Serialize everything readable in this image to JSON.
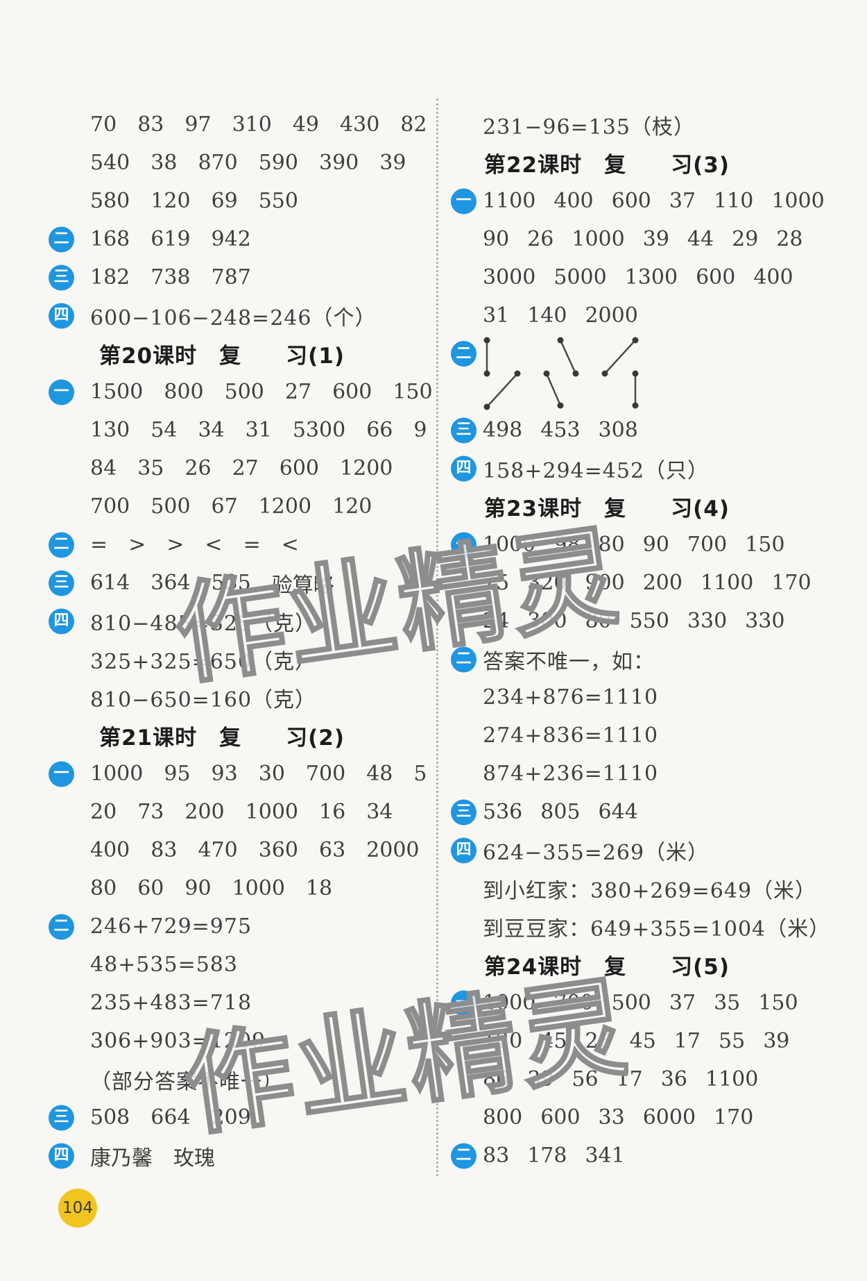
{
  "page": {
    "background": "#f8f7f3",
    "accent_blue": "#1f96e0",
    "page_number": "104",
    "page_number_bg": "#f2c41f",
    "watermark_text": "作业精灵",
    "watermark_outline": "#8d8d8d"
  },
  "columns": {
    "left": [
      {
        "type": "row",
        "marker": null,
        "items": [
          "70",
          "83",
          "97",
          "310",
          "49",
          "430",
          "82"
        ]
      },
      {
        "type": "row",
        "marker": null,
        "items": [
          "540",
          "38",
          "870",
          "590",
          "390",
          "39"
        ]
      },
      {
        "type": "row",
        "marker": null,
        "items": [
          "580",
          "120",
          "69",
          "550"
        ]
      },
      {
        "type": "row",
        "marker": "二",
        "items": [
          "168",
          "619",
          "942"
        ]
      },
      {
        "type": "row",
        "marker": "三",
        "items": [
          "182",
          "738",
          "787"
        ]
      },
      {
        "type": "expr",
        "marker": "四",
        "text": "600−106−248=246（个）"
      },
      {
        "type": "heading",
        "text": "第20课时　复　　习(1)"
      },
      {
        "type": "row",
        "marker": "一",
        "items": [
          "1500",
          "800",
          "500",
          "27",
          "600",
          "150"
        ]
      },
      {
        "type": "row",
        "marker": null,
        "items": [
          "130",
          "54",
          "34",
          "31",
          "5300",
          "66",
          "9"
        ]
      },
      {
        "type": "row",
        "marker": null,
        "items": [
          "84",
          "35",
          "26",
          "27",
          "600",
          "1200"
        ]
      },
      {
        "type": "row",
        "marker": null,
        "items": [
          "700",
          "500",
          "67",
          "1200",
          "120"
        ]
      },
      {
        "type": "row",
        "marker": "二",
        "items": [
          "=",
          ">",
          ">",
          "<",
          "=",
          "<"
        ]
      },
      {
        "type": "row",
        "marker": "三",
        "items": [
          "614",
          "364",
          "535",
          "验算略"
        ]
      },
      {
        "type": "expr",
        "marker": "四",
        "text": "810−485=325（克）"
      },
      {
        "type": "expr",
        "marker": null,
        "text": "325+325=650（克）"
      },
      {
        "type": "expr",
        "marker": null,
        "text": "810−650=160（克）"
      },
      {
        "type": "heading",
        "text": "第21课时　复　　习(2)"
      },
      {
        "type": "row",
        "marker": "一",
        "items": [
          "1000",
          "95",
          "93",
          "30",
          "700",
          "48",
          "5"
        ]
      },
      {
        "type": "row",
        "marker": null,
        "items": [
          "20",
          "73",
          "200",
          "1000",
          "16",
          "34"
        ]
      },
      {
        "type": "row",
        "marker": null,
        "items": [
          "400",
          "83",
          "470",
          "360",
          "63",
          "2000"
        ]
      },
      {
        "type": "row",
        "marker": null,
        "items": [
          "80",
          "60",
          "90",
          "1000",
          "18"
        ]
      },
      {
        "type": "expr",
        "marker": "二",
        "text": "246+729=975"
      },
      {
        "type": "expr",
        "marker": null,
        "text": "48+535=583"
      },
      {
        "type": "expr",
        "marker": null,
        "text": "235+483=718"
      },
      {
        "type": "expr",
        "marker": null,
        "text": "306+903=1209"
      },
      {
        "type": "expr",
        "marker": null,
        "text": "（部分答案不唯一）"
      },
      {
        "type": "row",
        "marker": "三",
        "items": [
          "508",
          "664",
          "209"
        ]
      },
      {
        "type": "row",
        "marker": "四",
        "items": [
          "康乃馨",
          "玫瑰"
        ]
      }
    ],
    "right": [
      {
        "type": "expr",
        "marker": null,
        "text": "231−96=135（枝）"
      },
      {
        "type": "heading",
        "text": "第22课时　复　　习(3)"
      },
      {
        "type": "row",
        "marker": "一",
        "items": [
          "1100",
          "400",
          "600",
          "37",
          "110",
          "1000"
        ]
      },
      {
        "type": "row",
        "marker": null,
        "items": [
          "90",
          "26",
          "1000",
          "39",
          "44",
          "29",
          "28"
        ]
      },
      {
        "type": "row",
        "marker": null,
        "items": [
          "3000",
          "5000",
          "1300",
          "600",
          "400"
        ]
      },
      {
        "type": "row",
        "marker": null,
        "items": [
          "31",
          "140",
          "2000"
        ]
      },
      {
        "type": "match",
        "marker": "二",
        "segments": [
          [
            6,
            8,
            6,
            56
          ],
          [
            50,
            56,
            6,
            104
          ],
          [
            112,
            8,
            134,
            56
          ],
          [
            92,
            56,
            112,
            102
          ],
          [
            176,
            56,
            220,
            8
          ],
          [
            220,
            56,
            220,
            102
          ]
        ]
      },
      {
        "type": "row",
        "marker": "三",
        "items": [
          "498",
          "453",
          "308"
        ]
      },
      {
        "type": "expr",
        "marker": "四",
        "text": "158+294=452（只）"
      },
      {
        "type": "heading",
        "text": "第23课时　复　　习(4)"
      },
      {
        "type": "row",
        "marker": "一",
        "items": [
          "1000",
          "98",
          "80",
          "90",
          "700",
          "150"
        ]
      },
      {
        "type": "row",
        "marker": null,
        "items": [
          "25",
          "320",
          "900",
          "200",
          "1100",
          "170"
        ]
      },
      {
        "type": "row",
        "marker": null,
        "items": [
          "24",
          "300",
          "80",
          "550",
          "330",
          "330"
        ]
      },
      {
        "type": "expr",
        "marker": "二",
        "text": "答案不唯一，如："
      },
      {
        "type": "expr",
        "marker": null,
        "text": "234+876=1110"
      },
      {
        "type": "expr",
        "marker": null,
        "text": "274+836=1110"
      },
      {
        "type": "expr",
        "marker": null,
        "text": "874+236=1110"
      },
      {
        "type": "row",
        "marker": "三",
        "items": [
          "536",
          "805",
          "644"
        ]
      },
      {
        "type": "expr",
        "marker": "四",
        "text": "624−355=269（米）"
      },
      {
        "type": "expr",
        "marker": null,
        "text": "到小红家：380+269=649（米）"
      },
      {
        "type": "expr",
        "marker": null,
        "text": "到豆豆家：649+355=1004（米）"
      },
      {
        "type": "heading",
        "text": "第24课时　复　　习(5)"
      },
      {
        "type": "row",
        "marker": "一",
        "items": [
          "1000",
          "700",
          "500",
          "37",
          "35",
          "150"
        ]
      },
      {
        "type": "row",
        "marker": null,
        "items": [
          "120",
          "45",
          "28",
          "45",
          "17",
          "55",
          "39"
        ]
      },
      {
        "type": "row",
        "marker": null,
        "items": [
          "86",
          "39",
          "56",
          "17",
          "36",
          "1100"
        ]
      },
      {
        "type": "row",
        "marker": null,
        "items": [
          "800",
          "600",
          "33",
          "6000",
          "170"
        ]
      },
      {
        "type": "row",
        "marker": "二",
        "items": [
          "83",
          "178",
          "341"
        ]
      }
    ]
  }
}
